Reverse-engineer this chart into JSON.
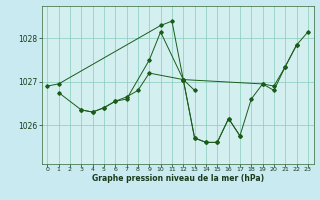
{
  "xlabel": "Graphe pression niveau de la mer (hPa)",
  "bg_color": "#c8eaf0",
  "plot_bg_color": "#d4eff0",
  "line_color": "#1a5c1a",
  "grid_color": "#88ccbb",
  "ylim": [
    1025.1,
    1028.75
  ],
  "yticks": [
    1026,
    1027,
    1028
  ],
  "xlim": [
    -0.5,
    23.5
  ],
  "xticks": [
    0,
    1,
    2,
    3,
    4,
    5,
    6,
    7,
    8,
    9,
    10,
    11,
    12,
    13,
    14,
    15,
    16,
    17,
    18,
    19,
    20,
    21,
    22,
    23
  ],
  "continuous_lines": [
    {
      "x": [
        0,
        1,
        10,
        11,
        12
      ],
      "y": [
        1026.9,
        1026.95,
        1028.3,
        1028.4,
        1027.05
      ]
    },
    {
      "x": [
        1,
        3,
        4,
        5,
        6,
        7,
        9,
        10,
        12,
        13
      ],
      "y": [
        1026.75,
        1026.35,
        1026.3,
        1026.4,
        1026.55,
        1026.6,
        1027.5,
        1028.15,
        1027.05,
        1026.8
      ]
    },
    {
      "x": [
        3,
        4,
        5,
        6,
        7,
        8,
        9,
        12,
        13,
        14,
        15,
        16,
        17
      ],
      "y": [
        1026.35,
        1026.3,
        1026.4,
        1026.55,
        1026.65,
        1026.8,
        1027.2,
        1027.05,
        1025.7,
        1025.6,
        1025.6,
        1026.15,
        1025.75
      ]
    },
    {
      "x": [
        12,
        13,
        14,
        15,
        16,
        17,
        18,
        19,
        20,
        21,
        22
      ],
      "y": [
        1027.05,
        1025.7,
        1025.6,
        1025.6,
        1026.15,
        1025.75,
        1026.6,
        1026.95,
        1026.9,
        1027.35,
        1027.85
      ]
    },
    {
      "x": [
        12,
        19,
        20,
        21,
        22,
        23
      ],
      "y": [
        1027.05,
        1026.95,
        1026.8,
        1027.35,
        1027.85,
        1028.15
      ]
    }
  ]
}
